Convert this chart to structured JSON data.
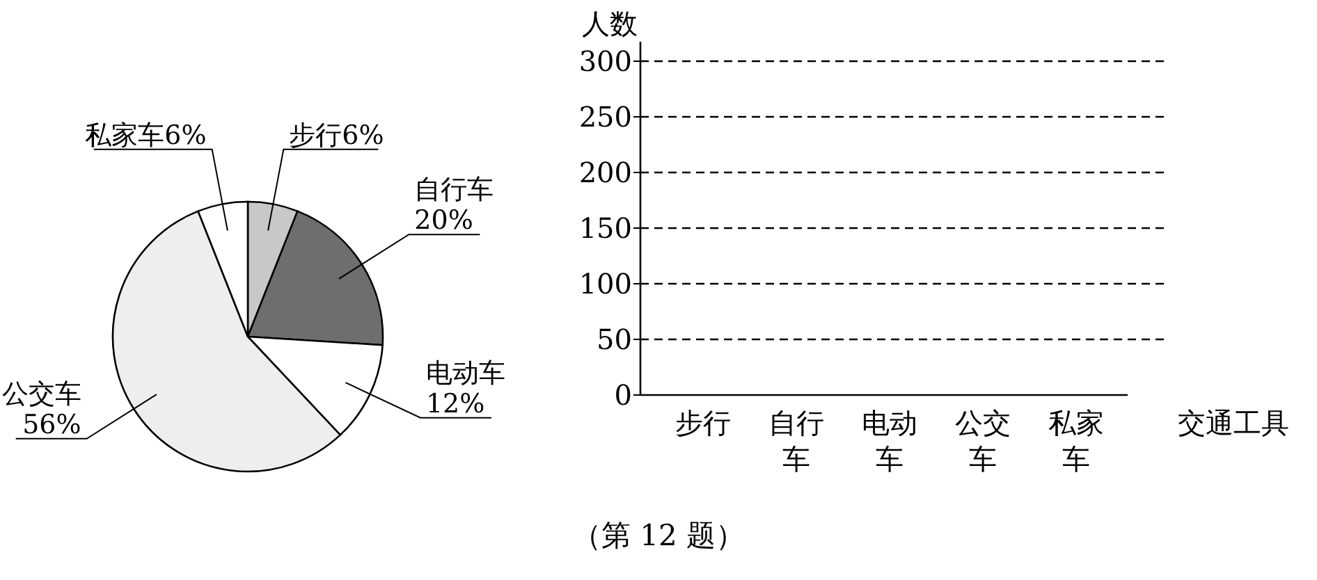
{
  "chart_data": [
    {
      "type": "pie",
      "categories": [
        "步行",
        "自行车",
        "电动车",
        "公交车",
        "私家车"
      ],
      "values": [
        6,
        20,
        12,
        56,
        6
      ],
      "value_labels": [
        "6%",
        "20%",
        "12%",
        "56%",
        "6%"
      ],
      "colors": [
        "#c8c8c8",
        "#6e6e6e",
        "#ffffff",
        "#eeeeee",
        "#ffffff"
      ],
      "annotations": [
        "（第 12 题）"
      ]
    },
    {
      "type": "bar",
      "categories": [
        "步行",
        "自行车",
        "电动车",
        "公交车",
        "私家车"
      ],
      "values": [
        null,
        null,
        null,
        null,
        null
      ],
      "ylabel": "人数",
      "xlabel": "交通工具",
      "ylim": [
        0,
        300
      ],
      "yticks": [
        0,
        50,
        100,
        150,
        200,
        250,
        300
      ],
      "grid": "y"
    }
  ]
}
